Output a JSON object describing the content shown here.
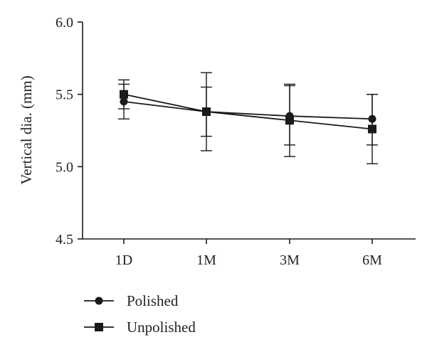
{
  "chart_data": {
    "type": "line",
    "categories": [
      "1D",
      "1M",
      "3M",
      "6M"
    ],
    "ylabel": "Vertical dia. (mm)",
    "xlabel": "",
    "ylim": [
      4.5,
      6.0
    ],
    "yticks": [
      "4.5",
      "5.0",
      "5.5",
      "6.0"
    ],
    "grid": false,
    "legend_position": "bottom-left",
    "series": [
      {
        "name": "Polished",
        "marker": "circle",
        "values": [
          5.45,
          5.38,
          5.35,
          5.33
        ],
        "error_low": [
          5.33,
          5.21,
          5.15,
          5.15
        ],
        "error_high": [
          5.57,
          5.55,
          5.56,
          5.5
        ]
      },
      {
        "name": "Unpolished",
        "marker": "square",
        "values": [
          5.5,
          5.38,
          5.32,
          5.26
        ],
        "error_low": [
          5.4,
          5.11,
          5.07,
          5.02
        ],
        "error_high": [
          5.6,
          5.65,
          5.57,
          5.5
        ]
      }
    ],
    "colors": {
      "line": "#1a1a1a",
      "axis": "#1a1a1a"
    }
  }
}
